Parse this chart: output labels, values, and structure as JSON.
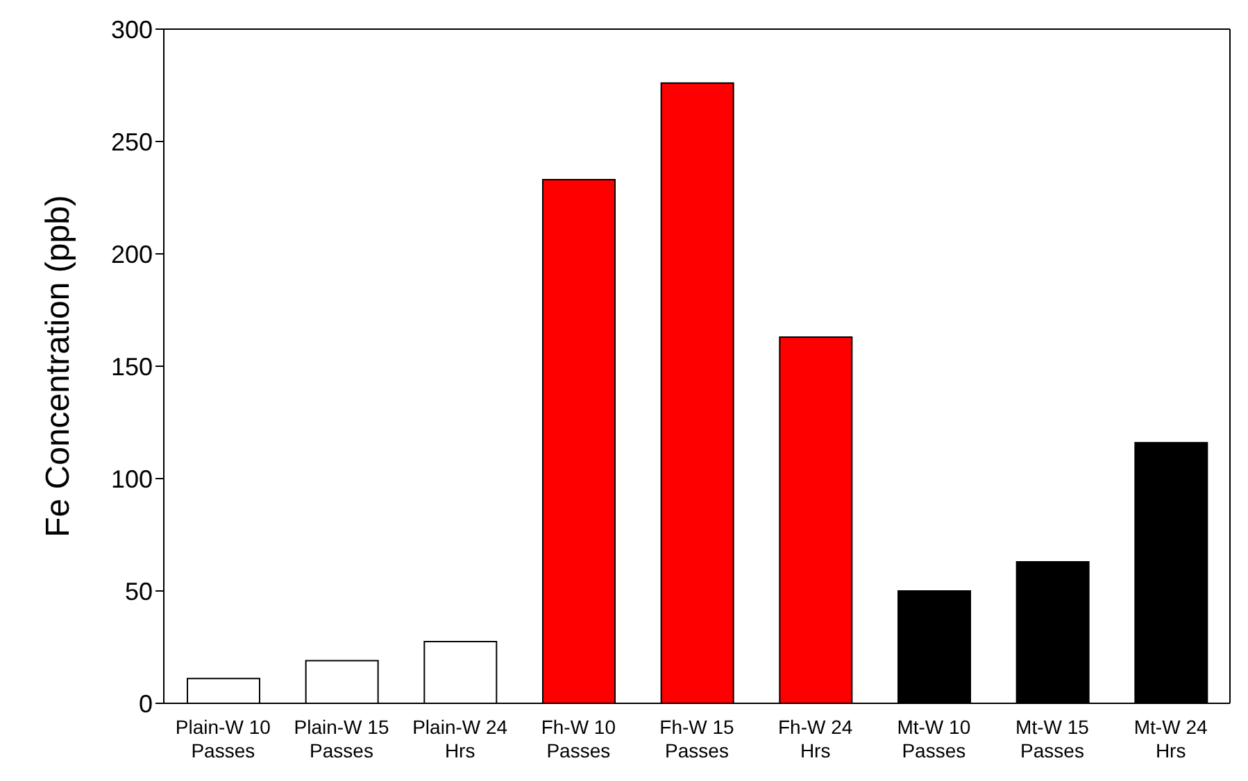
{
  "chart_data": {
    "type": "bar",
    "ylabel": "Fe Concentration (ppb)",
    "categories": [
      "Plain-W 10 Passes",
      "Plain-W 15 Passes",
      "Plain-W 24 Hrs",
      "Fh-W 10 Passes",
      "Fh-W 15 Passes",
      "Fh-W 24 Hrs",
      "Mt-W 10 Passes",
      "Mt-W 15 Passes",
      "Mt-W 24 Hrs"
    ],
    "values": [
      11,
      19,
      27.5,
      233,
      276,
      163,
      50,
      63,
      116
    ],
    "colors": [
      "#ffffff",
      "#ffffff",
      "#ffffff",
      "#ff0000",
      "#ff0000",
      "#ff0000",
      "#000000",
      "#000000",
      "#000000"
    ],
    "ylim": [
      0,
      300
    ],
    "yticks": [
      0,
      50,
      100,
      150,
      200,
      250,
      300
    ],
    "grid": false
  }
}
